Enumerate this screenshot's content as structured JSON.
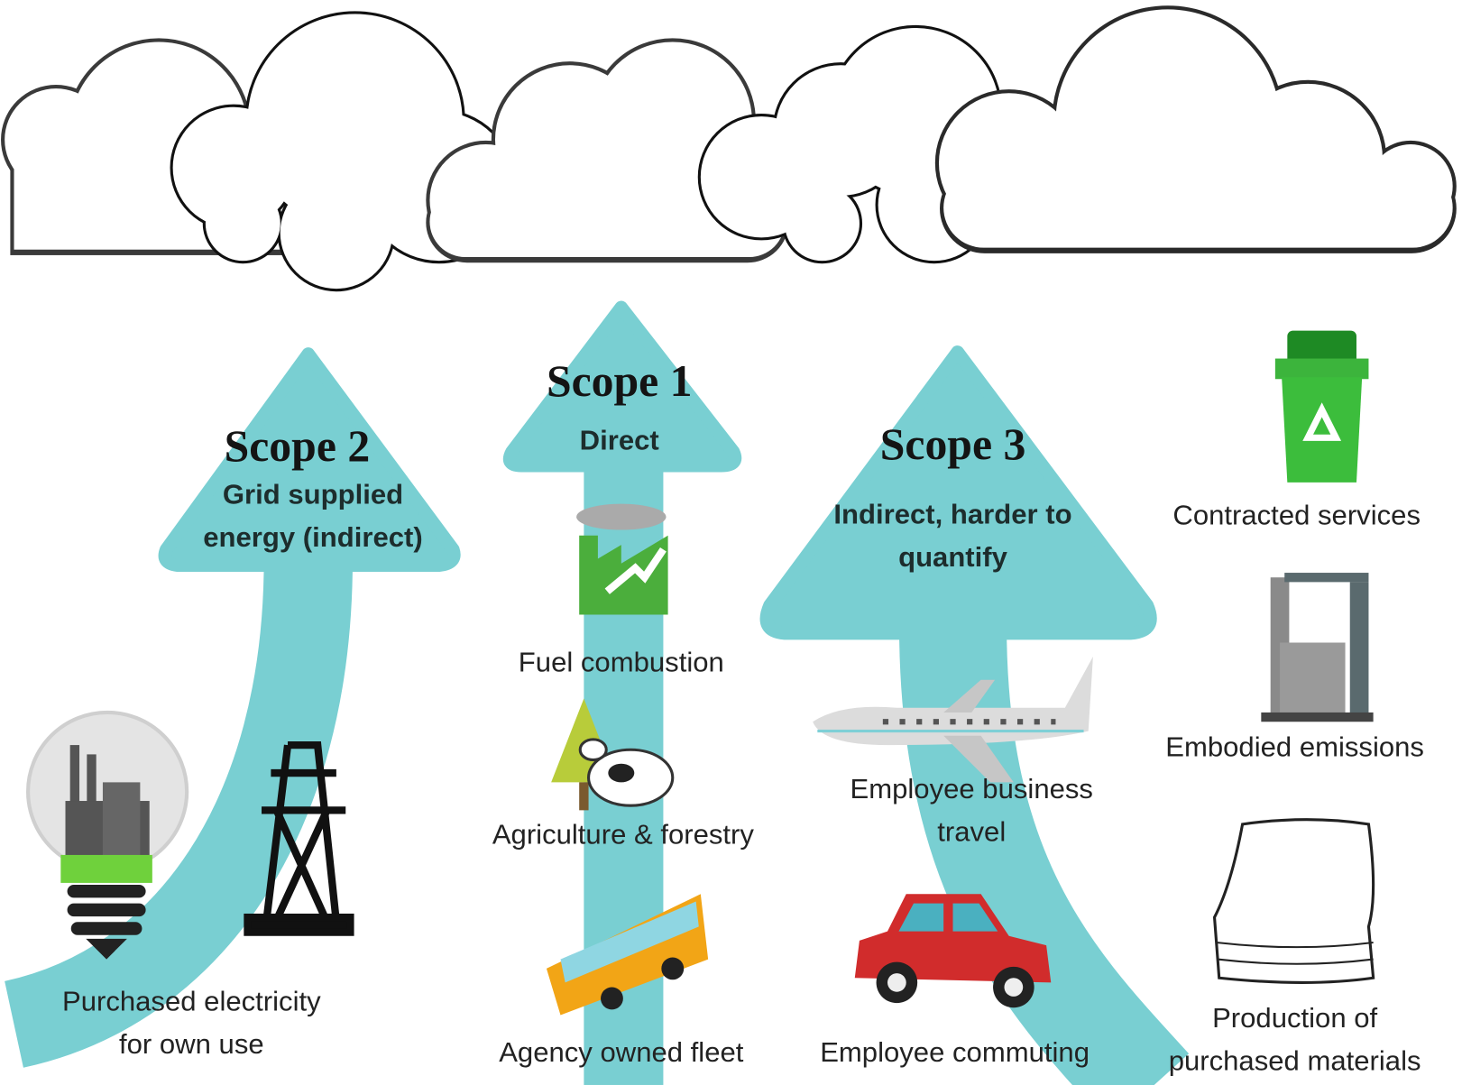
{
  "scopes": [
    {
      "title": "Scope 2",
      "subtitle": "Grid supplied energy (indirect)",
      "items": [
        "Purchased electricity for own use"
      ]
    },
    {
      "title": "Scope 1",
      "subtitle": "Direct",
      "items": [
        "Fuel combustion",
        "Agriculture & forestry",
        "Agency owned fleet"
      ]
    },
    {
      "title": "Scope 3",
      "subtitle": "Indirect, harder to quantify",
      "items": [
        "Employee business travel",
        "Employee commuting",
        "Contracted services",
        "Embodied emissions",
        "Production of purchased materials"
      ]
    }
  ]
}
